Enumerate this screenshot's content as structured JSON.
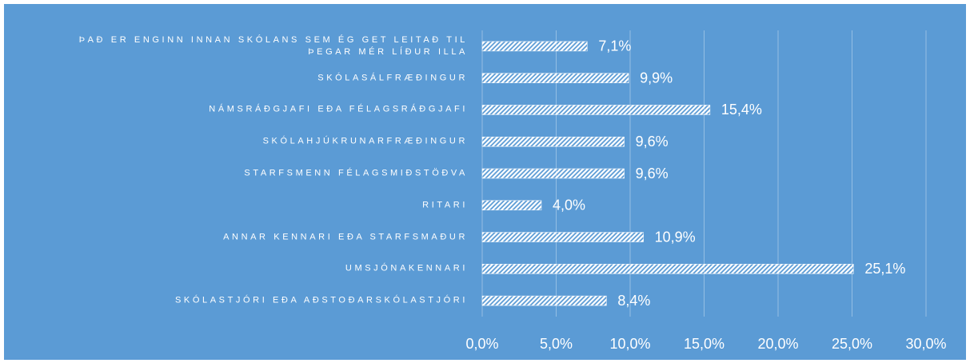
{
  "chart_data": {
    "type": "barh",
    "categories": [
      "ÞAÐ ER ENGINN INNAN SKÓLANS SEM ÉG GET LEITAÐ TIL\nÞEGAR MÉR LÍÐUR ILLA",
      "SKÓLASÁLFRÆÐINGUR",
      "NÁMSRÁÐGJAFI EÐA FÉLAGSRÁÐGJAFI",
      "SKÓLAHJÚKRUNARFRÆÐINGUR",
      "STARFSMENN FÉLAGSMIÐSTÖÐVA",
      "RITARI",
      "ANNAR KENNARI EÐA STARFSMAÐUR",
      "UMSJÓNAKENNARI",
      "SKÓLASTJÓRI EÐA AÐSTOÐARSKÓLASTJÓRI"
    ],
    "values": [
      7.1,
      9.9,
      15.4,
      9.6,
      9.6,
      4.0,
      10.9,
      25.1,
      8.4
    ],
    "value_labels": [
      "7,1%",
      "9,9%",
      "15,4%",
      "9,6%",
      "9,6%",
      "4,0%",
      "10,9%",
      "25,1%",
      "8,4%"
    ],
    "color": "#ffffff",
    "xlim": [
      0,
      30
    ],
    "xticks": [
      {
        "value": 0,
        "label": "0,0%"
      },
      {
        "value": 5,
        "label": "5,0%"
      },
      {
        "value": 10,
        "label": "10,0%"
      },
      {
        "value": 15,
        "label": "15,0%"
      },
      {
        "value": 20,
        "label": "20,0%"
      },
      {
        "value": 25,
        "label": "25,0%"
      },
      {
        "value": 30,
        "label": "30,0%"
      }
    ],
    "grid": true
  }
}
